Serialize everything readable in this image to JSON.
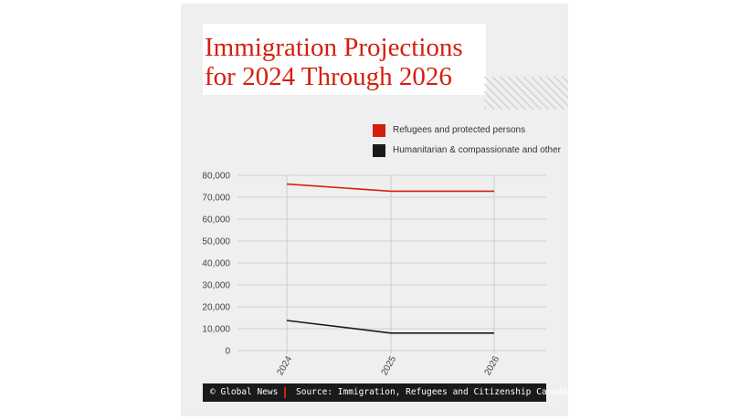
{
  "title": {
    "line1": "Immigration Projections",
    "line2": "for 2024 Through 2026"
  },
  "colors": {
    "accent": "#d41f0c",
    "dark": "#1a1a1a",
    "background": "#efefef"
  },
  "legend": [
    {
      "label": "Refugees and protected persons",
      "color": "#d41f0c"
    },
    {
      "label": "Humanitarian & compassionate and other",
      "color": "#1a1a1a"
    }
  ],
  "chart_data": {
    "type": "line",
    "title": "Immigration Projections for 2024 Through 2026",
    "x": [
      "2024",
      "2025",
      "2026"
    ],
    "ylim": [
      0,
      80000
    ],
    "yticks": [
      "0",
      "10,000",
      "20,000",
      "30,000",
      "40,000",
      "50,000",
      "60,000",
      "70,000",
      "80,000"
    ],
    "grid": true,
    "legend_position": "top-right",
    "series": [
      {
        "name": "Refugees and protected persons",
        "color": "#d41f0c",
        "values": [
          76000,
          72750,
          72750
        ]
      },
      {
        "name": "Humanitarian & compassionate and other",
        "color": "#1a1a1a",
        "values": [
          13750,
          8000,
          8000
        ]
      }
    ]
  },
  "footer": {
    "credit": "© Global News",
    "source": "Source: Immigration, Refugees and Citizenship Canada"
  }
}
